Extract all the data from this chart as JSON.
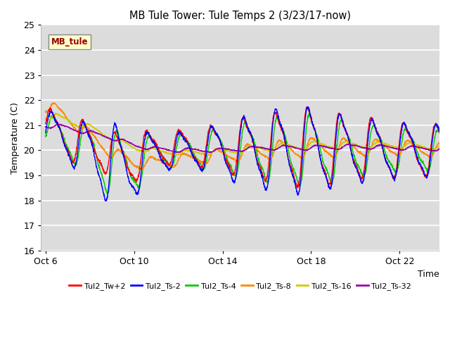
{
  "title": "MB Tule Tower: Tule Temps 2 (3/23/17-now)",
  "xlabel": "Time",
  "ylabel": "Temperature (C)",
  "ylim": [
    16.0,
    25.0
  ],
  "yticks": [
    16.0,
    17.0,
    18.0,
    19.0,
    20.0,
    21.0,
    22.0,
    23.0,
    24.0,
    25.0
  ],
  "xtick_labels": [
    "Oct 6",
    "Oct 10",
    "Oct 14",
    "Oct 18",
    "Oct 22"
  ],
  "xtick_positions": [
    6,
    10,
    14,
    18,
    22
  ],
  "xlim": [
    5.8,
    23.8
  ],
  "bg_color": "#dcdcdc",
  "plot_bg": "#dcdcdc",
  "legend_entries": [
    "Tul2_Tw+2",
    "Tul2_Ts-2",
    "Tul2_Ts-4",
    "Tul2_Ts-8",
    "Tul2_Ts-16",
    "Tul2_Ts-32"
  ],
  "legend_colors": [
    "#ff0000",
    "#0000ff",
    "#00cc00",
    "#ff8800",
    "#cccc00",
    "#9900aa"
  ],
  "station_label": "MB_tule",
  "station_box_color": "#ffffcc",
  "station_text_color": "#990000"
}
